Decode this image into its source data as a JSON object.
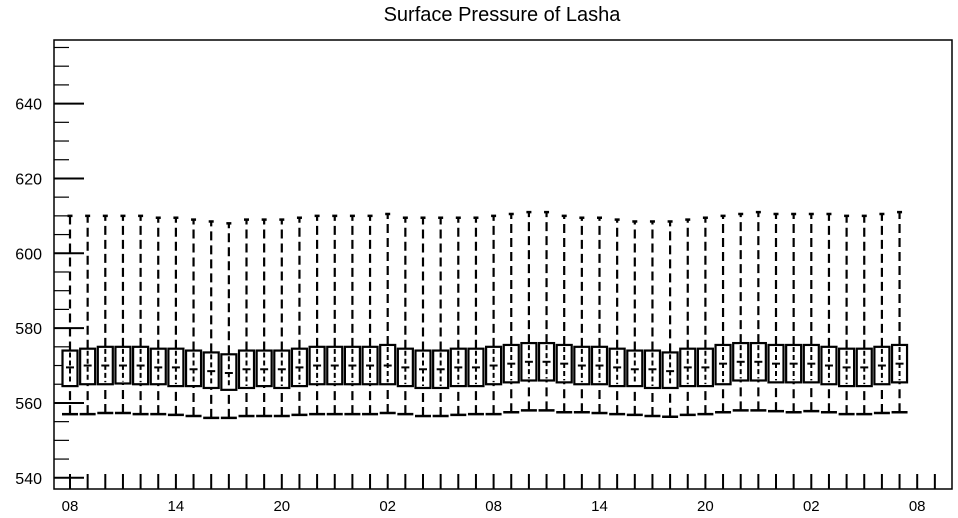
{
  "chart_data": {
    "type": "box",
    "title": "Surface Pressure of Lasha",
    "xlabel": "",
    "ylabel": "",
    "ylim": [
      537,
      657
    ],
    "y_major_ticks": [
      540,
      560,
      580,
      600,
      620,
      640
    ],
    "y_minor_step": 5,
    "x_tick_labels": [
      "08",
      "14",
      "20",
      "02",
      "08",
      "14",
      "20",
      "02",
      "08"
    ],
    "grid": false,
    "boxes": [
      {
        "x": 0,
        "whisker_low": 557.0,
        "q1": 564.5,
        "median": 569.5,
        "q3": 574.0,
        "whisker_high": 610.0
      },
      {
        "x": 1,
        "whisker_low": 557.0,
        "q1": 565.0,
        "median": 570.0,
        "q3": 574.5,
        "whisker_high": 610.0
      },
      {
        "x": 2,
        "whisker_low": 557.3,
        "q1": 565.0,
        "median": 570.0,
        "q3": 575.0,
        "whisker_high": 610.0
      },
      {
        "x": 3,
        "whisker_low": 557.3,
        "q1": 565.2,
        "median": 570.0,
        "q3": 575.0,
        "whisker_high": 610.0
      },
      {
        "x": 4,
        "whisker_low": 557.0,
        "q1": 565.0,
        "median": 570.0,
        "q3": 575.0,
        "whisker_high": 610.0
      },
      {
        "x": 5,
        "whisker_low": 557.0,
        "q1": 565.0,
        "median": 569.5,
        "q3": 574.5,
        "whisker_high": 609.5
      },
      {
        "x": 6,
        "whisker_low": 556.8,
        "q1": 564.5,
        "median": 569.5,
        "q3": 574.5,
        "whisker_high": 609.5
      },
      {
        "x": 7,
        "whisker_low": 556.5,
        "q1": 564.5,
        "median": 569.0,
        "q3": 574.0,
        "whisker_high": 609.0
      },
      {
        "x": 8,
        "whisker_low": 556.0,
        "q1": 564.0,
        "median": 568.5,
        "q3": 573.5,
        "whisker_high": 608.5
      },
      {
        "x": 9,
        "whisker_low": 556.0,
        "q1": 563.5,
        "median": 568.0,
        "q3": 573.0,
        "whisker_high": 608.0
      },
      {
        "x": 10,
        "whisker_low": 556.5,
        "q1": 564.0,
        "median": 569.0,
        "q3": 574.0,
        "whisker_high": 609.0
      },
      {
        "x": 11,
        "whisker_low": 556.5,
        "q1": 564.5,
        "median": 569.0,
        "q3": 574.0,
        "whisker_high": 609.0
      },
      {
        "x": 12,
        "whisker_low": 556.5,
        "q1": 564.0,
        "median": 569.0,
        "q3": 574.0,
        "whisker_high": 609.0
      },
      {
        "x": 13,
        "whisker_low": 556.8,
        "q1": 564.5,
        "median": 569.5,
        "q3": 574.5,
        "whisker_high": 609.5
      },
      {
        "x": 14,
        "whisker_low": 557.0,
        "q1": 565.0,
        "median": 570.0,
        "q3": 575.0,
        "whisker_high": 610.0
      },
      {
        "x": 15,
        "whisker_low": 557.0,
        "q1": 565.0,
        "median": 570.0,
        "q3": 575.0,
        "whisker_high": 610.0
      },
      {
        "x": 16,
        "whisker_low": 557.0,
        "q1": 565.0,
        "median": 570.0,
        "q3": 575.0,
        "whisker_high": 610.0
      },
      {
        "x": 17,
        "whisker_low": 557.0,
        "q1": 565.0,
        "median": 570.0,
        "q3": 575.0,
        "whisker_high": 610.0
      },
      {
        "x": 18,
        "whisker_low": 557.3,
        "q1": 565.0,
        "median": 570.0,
        "q3": 575.5,
        "whisker_high": 610.5
      },
      {
        "x": 19,
        "whisker_low": 557.0,
        "q1": 564.5,
        "median": 569.5,
        "q3": 574.5,
        "whisker_high": 609.5
      },
      {
        "x": 20,
        "whisker_low": 556.5,
        "q1": 564.0,
        "median": 569.0,
        "q3": 574.0,
        "whisker_high": 609.5
      },
      {
        "x": 21,
        "whisker_low": 556.5,
        "q1": 564.0,
        "median": 569.0,
        "q3": 574.0,
        "whisker_high": 609.5
      },
      {
        "x": 22,
        "whisker_low": 556.8,
        "q1": 564.5,
        "median": 569.5,
        "q3": 574.5,
        "whisker_high": 609.5
      },
      {
        "x": 23,
        "whisker_low": 557.0,
        "q1": 564.5,
        "median": 569.5,
        "q3": 574.5,
        "whisker_high": 609.5
      },
      {
        "x": 24,
        "whisker_low": 557.0,
        "q1": 565.0,
        "median": 570.0,
        "q3": 575.0,
        "whisker_high": 610.0
      },
      {
        "x": 25,
        "whisker_low": 557.5,
        "q1": 565.5,
        "median": 570.5,
        "q3": 575.5,
        "whisker_high": 610.5
      },
      {
        "x": 26,
        "whisker_low": 558.0,
        "q1": 566.0,
        "median": 571.0,
        "q3": 576.0,
        "whisker_high": 611.0
      },
      {
        "x": 27,
        "whisker_low": 558.0,
        "q1": 566.0,
        "median": 571.0,
        "q3": 576.0,
        "whisker_high": 611.0
      },
      {
        "x": 28,
        "whisker_low": 557.5,
        "q1": 565.5,
        "median": 570.5,
        "q3": 575.5,
        "whisker_high": 610.0
      },
      {
        "x": 29,
        "whisker_low": 557.5,
        "q1": 565.0,
        "median": 570.0,
        "q3": 575.0,
        "whisker_high": 609.5
      },
      {
        "x": 30,
        "whisker_low": 557.3,
        "q1": 565.0,
        "median": 570.0,
        "q3": 575.0,
        "whisker_high": 609.5
      },
      {
        "x": 31,
        "whisker_low": 557.0,
        "q1": 564.5,
        "median": 569.5,
        "q3": 574.5,
        "whisker_high": 609.0
      },
      {
        "x": 32,
        "whisker_low": 556.8,
        "q1": 564.5,
        "median": 569.0,
        "q3": 574.0,
        "whisker_high": 608.5
      },
      {
        "x": 33,
        "whisker_low": 556.5,
        "q1": 564.0,
        "median": 569.0,
        "q3": 574.0,
        "whisker_high": 608.5
      },
      {
        "x": 34,
        "whisker_low": 556.3,
        "q1": 564.0,
        "median": 568.5,
        "q3": 573.5,
        "whisker_high": 608.5
      },
      {
        "x": 35,
        "whisker_low": 556.8,
        "q1": 564.5,
        "median": 569.5,
        "q3": 574.5,
        "whisker_high": 609.0
      },
      {
        "x": 36,
        "whisker_low": 557.0,
        "q1": 564.5,
        "median": 569.5,
        "q3": 574.5,
        "whisker_high": 609.5
      },
      {
        "x": 37,
        "whisker_low": 557.5,
        "q1": 565.0,
        "median": 570.5,
        "q3": 575.5,
        "whisker_high": 610.0
      },
      {
        "x": 38,
        "whisker_low": 558.0,
        "q1": 566.0,
        "median": 571.0,
        "q3": 576.0,
        "whisker_high": 610.5
      },
      {
        "x": 39,
        "whisker_low": 558.0,
        "q1": 566.0,
        "median": 571.0,
        "q3": 576.0,
        "whisker_high": 611.0
      },
      {
        "x": 40,
        "whisker_low": 557.8,
        "q1": 565.5,
        "median": 570.5,
        "q3": 575.5,
        "whisker_high": 610.5
      },
      {
        "x": 41,
        "whisker_low": 557.5,
        "q1": 565.5,
        "median": 570.5,
        "q3": 575.5,
        "whisker_high": 610.5
      },
      {
        "x": 42,
        "whisker_low": 557.8,
        "q1": 565.5,
        "median": 570.5,
        "q3": 575.5,
        "whisker_high": 610.5
      },
      {
        "x": 43,
        "whisker_low": 557.5,
        "q1": 565.0,
        "median": 570.0,
        "q3": 575.0,
        "whisker_high": 610.5
      },
      {
        "x": 44,
        "whisker_low": 557.0,
        "q1": 564.5,
        "median": 569.5,
        "q3": 574.5,
        "whisker_high": 610.0
      },
      {
        "x": 45,
        "whisker_low": 557.0,
        "q1": 564.5,
        "median": 569.5,
        "q3": 574.5,
        "whisker_high": 610.0
      },
      {
        "x": 46,
        "whisker_low": 557.3,
        "q1": 565.0,
        "median": 570.0,
        "q3": 575.0,
        "whisker_high": 610.5
      },
      {
        "x": 47,
        "whisker_low": 557.5,
        "q1": 565.5,
        "median": 570.5,
        "q3": 575.5,
        "whisker_high": 611.0
      }
    ]
  }
}
